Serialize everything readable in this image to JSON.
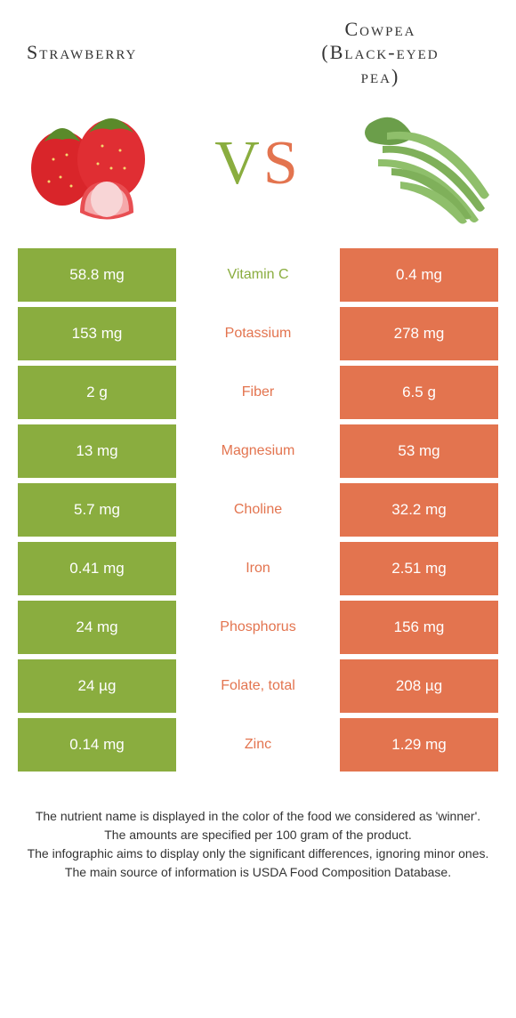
{
  "colors": {
    "left": "#8aad3f",
    "right": "#e3744f",
    "text": "#333333"
  },
  "food_left": {
    "title": "Strawberry"
  },
  "food_right": {
    "title_line1": "Cowpea",
    "title_line2": "(Black-eyed",
    "title_line3": "pea)"
  },
  "vs": {
    "v": "V",
    "s": "S"
  },
  "rows": [
    {
      "left": "58.8 mg",
      "label": "Vitamin C",
      "right": "0.4 mg",
      "winner": "left"
    },
    {
      "left": "153 mg",
      "label": "Potassium",
      "right": "278 mg",
      "winner": "right"
    },
    {
      "left": "2 g",
      "label": "Fiber",
      "right": "6.5 g",
      "winner": "right"
    },
    {
      "left": "13 mg",
      "label": "Magnesium",
      "right": "53 mg",
      "winner": "right"
    },
    {
      "left": "5.7 mg",
      "label": "Choline",
      "right": "32.2 mg",
      "winner": "right"
    },
    {
      "left": "0.41 mg",
      "label": "Iron",
      "right": "2.51 mg",
      "winner": "right"
    },
    {
      "left": "24 mg",
      "label": "Phosphorus",
      "right": "156 mg",
      "winner": "right"
    },
    {
      "left": "24 µg",
      "label": "Folate, total",
      "right": "208 µg",
      "winner": "right"
    },
    {
      "left": "0.14 mg",
      "label": "Zinc",
      "right": "1.29 mg",
      "winner": "right"
    }
  ],
  "footer": {
    "line1": "The nutrient name is displayed in the color of the food we considered as 'winner'.",
    "line2": "The amounts are specified per 100 gram of the product.",
    "line3": "The infographic aims to display only the significant differences, ignoring minor ones.",
    "line4": "The main source of information is USDA Food Composition Database."
  }
}
